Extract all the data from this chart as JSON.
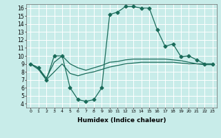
{
  "xlabel": "Humidex (Indice chaleur)",
  "background_color": "#c8ece9",
  "grid_color": "#ffffff",
  "line_color": "#1a6b5a",
  "xlim": [
    -0.5,
    23.5
  ],
  "ylim": [
    3.5,
    16.5
  ],
  "xticks": [
    0,
    1,
    2,
    3,
    4,
    5,
    6,
    7,
    8,
    9,
    10,
    11,
    12,
    13,
    14,
    15,
    16,
    17,
    18,
    19,
    20,
    21,
    22,
    23
  ],
  "yticks": [
    4,
    5,
    6,
    7,
    8,
    9,
    10,
    11,
    12,
    13,
    14,
    15,
    16
  ],
  "line1_x": [
    0,
    1,
    2,
    3,
    4,
    5,
    6,
    7,
    8,
    9,
    10,
    11,
    12,
    13,
    14,
    15,
    16,
    17,
    18,
    19,
    20,
    21,
    22,
    23
  ],
  "line1_y": [
    9.0,
    8.5,
    7.0,
    10.0,
    10.0,
    6.0,
    4.5,
    4.3,
    4.5,
    6.0,
    15.2,
    15.5,
    16.2,
    16.2,
    16.0,
    16.0,
    13.3,
    11.2,
    11.5,
    9.9,
    10.0,
    9.5,
    9.0,
    9.0
  ],
  "line2_x": [
    0,
    1,
    2,
    3,
    4,
    5,
    6,
    7,
    8,
    9,
    10,
    11,
    12,
    13,
    14,
    15,
    16,
    17,
    18,
    19,
    20,
    21,
    22,
    23
  ],
  "line2_y": [
    9.0,
    8.5,
    7.2,
    9.2,
    10.0,
    9.0,
    8.5,
    8.2,
    8.5,
    8.8,
    9.2,
    9.3,
    9.5,
    9.6,
    9.6,
    9.6,
    9.6,
    9.6,
    9.5,
    9.4,
    9.2,
    9.0,
    9.0,
    9.0
  ],
  "line3_x": [
    0,
    1,
    2,
    3,
    4,
    5,
    6,
    7,
    8,
    9,
    10,
    11,
    12,
    13,
    14,
    15,
    16,
    17,
    18,
    19,
    20,
    21,
    22,
    23
  ],
  "line3_y": [
    9.0,
    8.3,
    7.0,
    8.0,
    9.0,
    7.8,
    7.5,
    7.8,
    8.0,
    8.3,
    8.6,
    8.8,
    9.0,
    9.1,
    9.2,
    9.2,
    9.2,
    9.2,
    9.2,
    9.1,
    9.0,
    9.0,
    8.9,
    8.9
  ],
  "lw": 0.9,
  "ms": 2.5
}
